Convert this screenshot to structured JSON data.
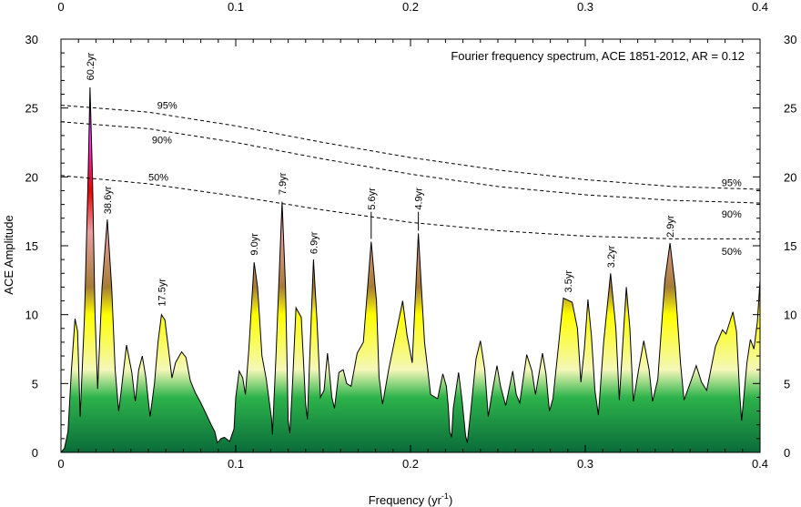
{
  "chart_data": {
    "type": "area",
    "title": "Fourier frequency spectrum, ACE 1851-2012, AR = 0.12",
    "xlabel": "Frequency (yr",
    "xlabel_sup": "-1",
    "xlabel_close": ")",
    "ylabel": "ACE Amplitude",
    "xlim": [
      0,
      0.4
    ],
    "ylim": [
      0,
      30
    ],
    "x_ticks": [
      0,
      0.1,
      0.2,
      0.3,
      0.4
    ],
    "x_tick_labels": [
      "0",
      "0.1",
      "0.2",
      "0.3",
      "0.4"
    ],
    "y_ticks": [
      0,
      5,
      10,
      15,
      20,
      25,
      30
    ],
    "y_tick_labels": [
      "0",
      "5",
      "10",
      "15",
      "20",
      "25",
      "30"
    ],
    "grid": false,
    "fill_gradient": {
      "stops": [
        {
          "value": 0,
          "color": "#0a6b3a"
        },
        {
          "value": 4,
          "color": "#2db34a"
        },
        {
          "value": 6,
          "color": "#f4f7b8"
        },
        {
          "value": 10,
          "color": "#ffff00"
        },
        {
          "value": 12,
          "color": "#a67c35"
        },
        {
          "value": 16,
          "color": "#e8a0a0"
        },
        {
          "value": 19,
          "color": "#ee0000"
        },
        {
          "value": 23,
          "color": "#ff33ff"
        },
        {
          "value": 27,
          "color": "#552266"
        }
      ]
    },
    "spectrum": [
      [
        0,
        0
      ],
      [
        0.002,
        0.3
      ],
      [
        0.004,
        1.5
      ],
      [
        0.006,
        6
      ],
      [
        0.008,
        9.7
      ],
      [
        0.0095,
        8.8
      ],
      [
        0.011,
        2.6
      ],
      [
        0.0135,
        10
      ],
      [
        0.0155,
        20
      ],
      [
        0.0166,
        26.5
      ],
      [
        0.018,
        20
      ],
      [
        0.0195,
        10
      ],
      [
        0.021,
        4.6
      ],
      [
        0.0235,
        12
      ],
      [
        0.0265,
        16.9
      ],
      [
        0.029,
        12
      ],
      [
        0.031,
        6
      ],
      [
        0.033,
        3
      ],
      [
        0.0345,
        4.5
      ],
      [
        0.0375,
        7.8
      ],
      [
        0.0405,
        5.8
      ],
      [
        0.0425,
        3.7
      ],
      [
        0.0445,
        6
      ],
      [
        0.0465,
        7
      ],
      [
        0.0485,
        5.5
      ],
      [
        0.051,
        2.6
      ],
      [
        0.0535,
        5
      ],
      [
        0.0555,
        8
      ],
      [
        0.0575,
        10
      ],
      [
        0.0595,
        9.6
      ],
      [
        0.0615,
        7.5
      ],
      [
        0.0635,
        5.4
      ],
      [
        0.0655,
        6.5
      ],
      [
        0.069,
        7.3
      ],
      [
        0.0715,
        6.9
      ],
      [
        0.074,
        5.2
      ],
      [
        0.077,
        4.3
      ],
      [
        0.08,
        3.6
      ],
      [
        0.083,
        2.8
      ],
      [
        0.086,
        2
      ],
      [
        0.088,
        1.5
      ],
      [
        0.0895,
        0.7
      ],
      [
        0.0915,
        1
      ],
      [
        0.0935,
        1.1
      ],
      [
        0.0965,
        0.8
      ],
      [
        0.099,
        1.7
      ],
      [
        0.1,
        4
      ],
      [
        0.102,
        5.9
      ],
      [
        0.104,
        5.4
      ],
      [
        0.1055,
        4.2
      ],
      [
        0.1075,
        7.5
      ],
      [
        0.1105,
        13.8
      ],
      [
        0.1125,
        12
      ],
      [
        0.115,
        7
      ],
      [
        0.1175,
        5.3
      ],
      [
        0.1205,
        2.4
      ],
      [
        0.121,
        1.3
      ],
      [
        0.123,
        7
      ],
      [
        0.1265,
        18.2
      ],
      [
        0.1285,
        12
      ],
      [
        0.13,
        2.3
      ],
      [
        0.131,
        1.4
      ],
      [
        0.1325,
        5
      ],
      [
        0.1345,
        10.5
      ],
      [
        0.1375,
        9.8
      ],
      [
        0.14,
        3.5
      ],
      [
        0.141,
        2.4
      ],
      [
        0.1445,
        14
      ],
      [
        0.1465,
        9.5
      ],
      [
        0.1485,
        4
      ],
      [
        0.1505,
        4.5
      ],
      [
        0.1525,
        7.2
      ],
      [
        0.155,
        4
      ],
      [
        0.1565,
        3.2
      ],
      [
        0.159,
        5.8
      ],
      [
        0.1615,
        6
      ],
      [
        0.1635,
        5
      ],
      [
        0.166,
        4.8
      ],
      [
        0.1695,
        7.2
      ],
      [
        0.173,
        8
      ],
      [
        0.1775,
        15.3
      ],
      [
        0.1805,
        11
      ],
      [
        0.182,
        5.5
      ],
      [
        0.184,
        3.5
      ],
      [
        0.1875,
        6
      ],
      [
        0.1915,
        8.5
      ],
      [
        0.1955,
        11
      ],
      [
        0.198,
        8.5
      ],
      [
        0.201,
        6.5
      ],
      [
        0.2045,
        15.9
      ],
      [
        0.208,
        8
      ],
      [
        0.2115,
        4.2
      ],
      [
        0.2155,
        3.9
      ],
      [
        0.2185,
        5.7
      ],
      [
        0.2205,
        4.8
      ],
      [
        0.2215,
        3.5
      ],
      [
        0.2225,
        1.5
      ],
      [
        0.2235,
        1.1
      ],
      [
        0.2245,
        3.2
      ],
      [
        0.2275,
        5.8
      ],
      [
        0.2295,
        3.8
      ],
      [
        0.2315,
        1.2
      ],
      [
        0.2325,
        0.7
      ],
      [
        0.2345,
        3
      ],
      [
        0.2375,
        6.8
      ],
      [
        0.24,
        8.1
      ],
      [
        0.2425,
        6
      ],
      [
        0.2445,
        2.6
      ],
      [
        0.2465,
        4.2
      ],
      [
        0.2495,
        6.3
      ],
      [
        0.2515,
        4.8
      ],
      [
        0.2545,
        3.4
      ],
      [
        0.2585,
        5.9
      ],
      [
        0.2605,
        4.2
      ],
      [
        0.2625,
        3.6
      ],
      [
        0.2665,
        7.1
      ],
      [
        0.2695,
        5.9
      ],
      [
        0.2715,
        4.2
      ],
      [
        0.2755,
        7.2
      ],
      [
        0.2775,
        5.7
      ],
      [
        0.2795,
        3
      ],
      [
        0.2815,
        3.9
      ],
      [
        0.2845,
        7.5
      ],
      [
        0.2875,
        11.2
      ],
      [
        0.2925,
        10.9
      ],
      [
        0.2955,
        9
      ],
      [
        0.2975,
        5.1
      ],
      [
        0.2995,
        7.5
      ],
      [
        0.3015,
        11.1
      ],
      [
        0.3035,
        8.5
      ],
      [
        0.3055,
        4.5
      ],
      [
        0.3075,
        2.7
      ],
      [
        0.3105,
        8
      ],
      [
        0.3145,
        13
      ],
      [
        0.3175,
        9
      ],
      [
        0.3195,
        3.8
      ],
      [
        0.3235,
        12
      ],
      [
        0.3255,
        9
      ],
      [
        0.3275,
        3.7
      ],
      [
        0.3305,
        6
      ],
      [
        0.3335,
        8.1
      ],
      [
        0.3365,
        6
      ],
      [
        0.3385,
        3.7
      ],
      [
        0.3415,
        5.3
      ],
      [
        0.3455,
        12.5
      ],
      [
        0.3485,
        15.2
      ],
      [
        0.3515,
        12
      ],
      [
        0.3545,
        6.5
      ],
      [
        0.3565,
        3.8
      ],
      [
        0.3605,
        5.2
      ],
      [
        0.3635,
        6.3
      ],
      [
        0.3665,
        5.1
      ],
      [
        0.3695,
        4.5
      ],
      [
        0.3745,
        7.7
      ],
      [
        0.3785,
        8.9
      ],
      [
        0.3805,
        8.6
      ],
      [
        0.3845,
        10.2
      ],
      [
        0.3865,
        8.8
      ],
      [
        0.3885,
        4
      ],
      [
        0.3895,
        2.3
      ],
      [
        0.3925,
        6.5
      ],
      [
        0.3945,
        8.2
      ],
      [
        0.3965,
        7.5
      ],
      [
        0.3985,
        9.5
      ],
      [
        0.4,
        12.5
      ]
    ],
    "confidence_curves": [
      {
        "name": "95%",
        "points": [
          [
            0,
            25.2
          ],
          [
            0.05,
            24.7
          ],
          [
            0.1,
            23.7
          ],
          [
            0.15,
            22.5
          ],
          [
            0.2,
            21.4
          ],
          [
            0.25,
            20.5
          ],
          [
            0.3,
            19.8
          ],
          [
            0.35,
            19.3
          ],
          [
            0.4,
            19.1
          ]
        ]
      },
      {
        "name": "90%",
        "points": [
          [
            0,
            24
          ],
          [
            0.05,
            23.5
          ],
          [
            0.1,
            22.5
          ],
          [
            0.15,
            21.3
          ],
          [
            0.2,
            20.2
          ],
          [
            0.25,
            19.3
          ],
          [
            0.3,
            18.7
          ],
          [
            0.35,
            18.3
          ],
          [
            0.4,
            18.1
          ]
        ]
      },
      {
        "name": "50%",
        "points": [
          [
            0,
            20.1
          ],
          [
            0.05,
            19.5
          ],
          [
            0.1,
            18.6
          ],
          [
            0.15,
            17.6
          ],
          [
            0.2,
            16.7
          ],
          [
            0.25,
            16.1
          ],
          [
            0.3,
            15.7
          ],
          [
            0.35,
            15.5
          ],
          [
            0.4,
            15.5
          ]
        ]
      }
    ],
    "confidence_labels": [
      {
        "text": "95%",
        "x": 0.055,
        "y": 25.2
      },
      {
        "text": "90%",
        "x": 0.052,
        "y": 22.7
      },
      {
        "text": "50%",
        "x": 0.05,
        "y": 20
      },
      {
        "text": "95%",
        "x": 0.378,
        "y": 19.6
      },
      {
        "text": "90%",
        "x": 0.378,
        "y": 17.3
      },
      {
        "text": "50%",
        "x": 0.378,
        "y": 14.6
      }
    ],
    "peak_labels": [
      {
        "text": "60.2yr",
        "x": 0.0166,
        "y": 27
      },
      {
        "text": "38.6yr",
        "x": 0.0265,
        "y": 17.3
      },
      {
        "text": "17.5yr",
        "x": 0.0575,
        "y": 10.6
      },
      {
        "text": "9.0yr",
        "x": 0.1105,
        "y": 14.3
      },
      {
        "text": "7.9yr",
        "x": 0.1265,
        "y": 18.7
      },
      {
        "text": "6.9yr",
        "x": 0.1445,
        "y": 14.4
      },
      {
        "text": "5.6yr",
        "x": 0.1775,
        "y": 17.6,
        "leader_to": 15.5
      },
      {
        "text": "4.9yr",
        "x": 0.2045,
        "y": 17.6,
        "leader_to": 16.1
      },
      {
        "text": "3.5yr",
        "x": 0.29,
        "y": 11.6
      },
      {
        "text": "3.2yr",
        "x": 0.3145,
        "y": 13.4
      },
      {
        "text": "2.9yr",
        "x": 0.3485,
        "y": 15.6
      }
    ]
  }
}
